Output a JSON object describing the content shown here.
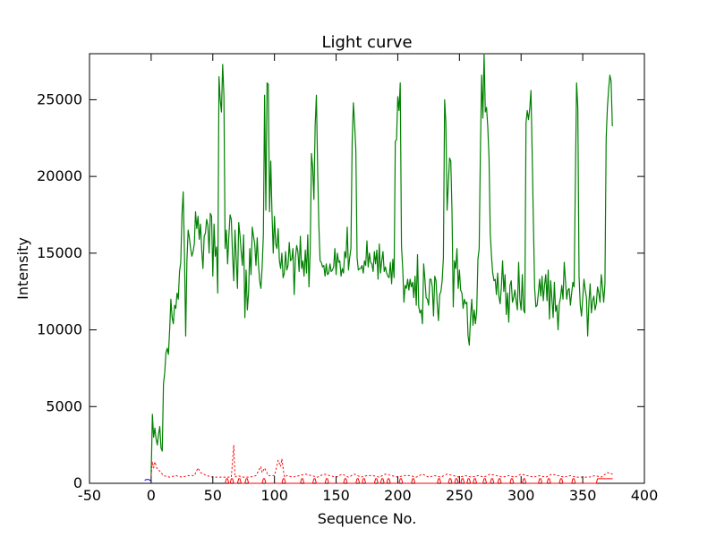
{
  "chart_data": {
    "type": "line",
    "title": "Light curve",
    "xlabel": "Sequence No.",
    "ylabel": "Intensity",
    "xlim": [
      -50,
      400
    ],
    "ylim": [
      0,
      28000
    ],
    "xticks": [
      -50,
      0,
      50,
      100,
      150,
      200,
      250,
      300,
      350,
      400
    ],
    "yticks": [
      0,
      5000,
      10000,
      15000,
      20000,
      25000
    ],
    "grid": false,
    "colors": {
      "main": "#008000",
      "error": "#ff0000",
      "start": "#0000ff"
    },
    "series": [
      {
        "style": "solid",
        "x": [
          0,
          1,
          2,
          3,
          4,
          5,
          6,
          7,
          8,
          9,
          10,
          11,
          12,
          13,
          14,
          15,
          16,
          17,
          18,
          19,
          20,
          21,
          22,
          23,
          24,
          25,
          26,
          27,
          28,
          29,
          30,
          31,
          32,
          33,
          34,
          35,
          36,
          37,
          38,
          39,
          40,
          41,
          42,
          43,
          44,
          45,
          46,
          47,
          48,
          49,
          50,
          51,
          52,
          53,
          54,
          55,
          56,
          57,
          58,
          59,
          60,
          61,
          62,
          63,
          64,
          65,
          66,
          67,
          68,
          69,
          70,
          71,
          72,
          73,
          74,
          75,
          76,
          77,
          78,
          79,
          80,
          81,
          82,
          83,
          84,
          85,
          86,
          87,
          88,
          89,
          90,
          91,
          92,
          93,
          94,
          95,
          96,
          97,
          98,
          99,
          100,
          101,
          102,
          103,
          104,
          105,
          106,
          107,
          108,
          109,
          110,
          111,
          112,
          113,
          114,
          115,
          116,
          117,
          118,
          119,
          120,
          121,
          122,
          123,
          124,
          125,
          126,
          127,
          128,
          129,
          130,
          131,
          132,
          133,
          134,
          135,
          136,
          137,
          138,
          139,
          140,
          141,
          142,
          143,
          144,
          145,
          146,
          147,
          148,
          149,
          150,
          151,
          152,
          153,
          154,
          155,
          156,
          157,
          158,
          159,
          160,
          161,
          162,
          163,
          164,
          165,
          166,
          167,
          168,
          169,
          170,
          171,
          172,
          173,
          174,
          175,
          176,
          177,
          178,
          179,
          180,
          181,
          182,
          183,
          184,
          185,
          186,
          187,
          188,
          189,
          190,
          191,
          192,
          193,
          194,
          195,
          196,
          197,
          198,
          199,
          200,
          201,
          202,
          203,
          204,
          205,
          206,
          207,
          208,
          209,
          210,
          211,
          212,
          213,
          214,
          215,
          216,
          217,
          218,
          219,
          220,
          221,
          222,
          223,
          224,
          225,
          226,
          227,
          228,
          229,
          230,
          231,
          232,
          233,
          234,
          235,
          236,
          237,
          238,
          239,
          240,
          241,
          242,
          243,
          244,
          245,
          246,
          247,
          248,
          249,
          250,
          251,
          252,
          253,
          254,
          255,
          256,
          257,
          258,
          259,
          260,
          261,
          262,
          263,
          264,
          265,
          266,
          267,
          268,
          269,
          270,
          271,
          272,
          273,
          274,
          275,
          276,
          277,
          278,
          279,
          280,
          281,
          282,
          283,
          284,
          285,
          286,
          287,
          288,
          289,
          290,
          291,
          292,
          293,
          294,
          295,
          296,
          297,
          298,
          299,
          300,
          301,
          302,
          303,
          304,
          305,
          306,
          307,
          308,
          309,
          310,
          311,
          312,
          313,
          314,
          315,
          316,
          317,
          318,
          319,
          320,
          321,
          322,
          323,
          324,
          325,
          326,
          327,
          328,
          329,
          330,
          331,
          332,
          333,
          334,
          335,
          336,
          337,
          338,
          339,
          340,
          341,
          342,
          343,
          344,
          345,
          346,
          347,
          348,
          349,
          350,
          351,
          352,
          353,
          354,
          355,
          356,
          357,
          358,
          359,
          360,
          361,
          362,
          363,
          364,
          365,
          366,
          367,
          368,
          369,
          370,
          371,
          372,
          373,
          374
        ],
        "y": [
          500,
          4500,
          3000,
          3600,
          2900,
          2500,
          3200,
          3700,
          2300,
          2100,
          6500,
          7200,
          8500,
          8800,
          8400,
          10000,
          12000,
          10800,
          10400,
          11600,
          11400,
          12400,
          12000,
          13800,
          14400,
          17500,
          19000,
          15000,
          9600,
          14500,
          16500,
          16000,
          15300,
          14800,
          15100,
          15600,
          17700,
          16600,
          17400,
          15900,
          16900,
          15200,
          14000,
          16100,
          16300,
          17200,
          16800,
          15000,
          17600,
          17400,
          13500,
          16900,
          14800,
          15400,
          12400,
          26500,
          25000,
          24200,
          27300,
          25300,
          15300,
          16500,
          14300,
          16100,
          17500,
          17200,
          14900,
          13200,
          16500,
          14600,
          12700,
          17000,
          16200,
          15100,
          14200,
          16200,
          10800,
          13900,
          11300,
          12400,
          15300,
          13600,
          16700,
          16100,
          15600,
          14200,
          16000,
          14300,
          13200,
          12700,
          14100,
          16200,
          25300,
          17800,
          26100,
          26000,
          17700,
          21000,
          17600,
          15000,
          17400,
          15600,
          15300,
          16600,
          14500,
          14000,
          15000,
          13400,
          13700,
          15100,
          13900,
          14200,
          15700,
          14500,
          14600,
          15300,
          12300,
          14700,
          15500,
          15100,
          13800,
          16100,
          14000,
          14500,
          13500,
          15200,
          13700,
          16200,
          12800,
          15200,
          21500,
          20600,
          18500,
          23300,
          25300,
          20500,
          16800,
          14500,
          14400,
          14100,
          14200,
          13500,
          14300,
          13600,
          13700,
          14300,
          13800,
          13900,
          14100,
          15300,
          13600,
          15000,
          14400,
          14500,
          13500,
          14000,
          13700,
          15100,
          14700,
          16700,
          13900,
          14700,
          15300,
          22200,
          24800,
          23400,
          21700,
          14700,
          13900,
          14000,
          14000,
          14200,
          13700,
          14500,
          14200,
          15800,
          14100,
          15000,
          14400,
          14300,
          13800,
          15100,
          14300,
          15200,
          13300,
          15600,
          13700,
          14500,
          15100,
          13800,
          14100,
          13700,
          13500,
          13400,
          14400,
          13000,
          14600,
          13400,
          22300,
          22400,
          25200,
          24300,
          26100,
          15500,
          14000,
          11800,
          12900,
          12700,
          13300,
          12600,
          13300,
          12800,
          13100,
          12100,
          13500,
          11600,
          14900,
          11500,
          11100,
          11300,
          10400,
          14300,
          13300,
          12100,
          12000,
          11600,
          13300,
          13300,
          12800,
          10900,
          13500,
          13200,
          11700,
          10600,
          12300,
          12500,
          13200,
          14700,
          25000,
          23500,
          17800,
          19500,
          21200,
          21000,
          17600,
          11500,
          14500,
          14000,
          15300,
          12700,
          13900,
          12600,
          12400,
          11400,
          12000,
          11700,
          11800,
          9600,
          9000,
          10800,
          12000,
          10300,
          11300,
          10400,
          11200,
          14600,
          15300,
          21600,
          26600,
          23800,
          28000,
          24200,
          24500,
          23200,
          21200,
          16300,
          14800,
          13700,
          13200,
          13300,
          12300,
          13700,
          12200,
          11700,
          12800,
          14500,
          12500,
          13600,
          11000,
          12400,
          10500,
          12900,
          13200,
          11800,
          12100,
          12600,
          11900,
          11300,
          14400,
          12000,
          11300,
          13600,
          11300,
          11100,
          23500,
          24300,
          23700,
          24400,
          25600,
          21500,
          16900,
          12700,
          11500,
          11600,
          12400,
          13300,
          12200,
          13500,
          11900,
          12900,
          13600,
          11900,
          13900,
          10700,
          13200,
          12000,
          10800,
          13100,
          11200,
          11600,
          10000,
          11700,
          12100,
          12900,
          12000,
          14400,
          13200,
          12000,
          12600,
          12700,
          11600,
          12400,
          13100,
          12800,
          19500,
          26100,
          24500,
          13500,
          11600,
          10900,
          12100,
          13300,
          12600,
          12100,
          9600,
          11800,
          13000,
          11100,
          11900,
          12200,
          11300,
          11700,
          12800,
          12400,
          11800,
          13600,
          12800,
          11800,
          13000,
          22500,
          24500,
          25700,
          26600,
          26200,
          23300
        ]
      },
      {
        "style": "dotted",
        "x": [
          0,
          1,
          2,
          3,
          5,
          7,
          10,
          15,
          20,
          25,
          30,
          35,
          38,
          40,
          45,
          50,
          55,
          60,
          65,
          67,
          68,
          70,
          75,
          80,
          85,
          89,
          90,
          92,
          95,
          100,
          103,
          105,
          106,
          107,
          108,
          110,
          115,
          120,
          125,
          130,
          135,
          140,
          145,
          150,
          155,
          160,
          165,
          170,
          175,
          180,
          185,
          190,
          195,
          200,
          205,
          210,
          215,
          220,
          225,
          230,
          235,
          240,
          245,
          250,
          255,
          260,
          265,
          270,
          275,
          280,
          285,
          290,
          295,
          300,
          305,
          310,
          315,
          320,
          325,
          330,
          335,
          340,
          345,
          350,
          355,
          360,
          365,
          370,
          374
        ],
        "y": [
          500,
          1400,
          1000,
          1400,
          900,
          800,
          500,
          400,
          500,
          400,
          500,
          500,
          1000,
          700,
          500,
          400,
          400,
          400,
          400,
          2500,
          400,
          500,
          400,
          400,
          500,
          1100,
          700,
          1000,
          500,
          500,
          1500,
          1100,
          1600,
          1000,
          400,
          500,
          400,
          500,
          600,
          500,
          400,
          600,
          500,
          400,
          600,
          400,
          600,
          400,
          500,
          500,
          400,
          600,
          500,
          400,
          500,
          500,
          400,
          600,
          400,
          500,
          400,
          600,
          500,
          400,
          500,
          400,
          500,
          400,
          600,
          500,
          400,
          500,
          400,
          600,
          500,
          400,
          500,
          400,
          600,
          500,
          400,
          500,
          400,
          400,
          400,
          500,
          400,
          700,
          600
        ]
      },
      {
        "style": "solid",
        "x": [
          60,
          61,
          62,
          63,
          64,
          65,
          66,
          67,
          70,
          71,
          72,
          73,
          76,
          77,
          78,
          79,
          90,
          91,
          92,
          93,
          106,
          107,
          108,
          109,
          121,
          122,
          123,
          124,
          131,
          132,
          133,
          134,
          141,
          142,
          143,
          144,
          156,
          157,
          158,
          159,
          166,
          167,
          168,
          169,
          171,
          172,
          173,
          174,
          181,
          182,
          183,
          184,
          186,
          187,
          188,
          189,
          191,
          192,
          193,
          194,
          201,
          202,
          203,
          204,
          211,
          212,
          213,
          214,
          232,
          233,
          234,
          235,
          241,
          242,
          243,
          244,
          246,
          247,
          248,
          249,
          251,
          252,
          253,
          254,
          256,
          257,
          258,
          259,
          261,
          262,
          263,
          264,
          269,
          270,
          271,
          272,
          275,
          276,
          277,
          278,
          281,
          282,
          283,
          284,
          291,
          292,
          293,
          294,
          301,
          302,
          303,
          304,
          314,
          315,
          316,
          317,
          321,
          322,
          323,
          324,
          331,
          332,
          333,
          334,
          341,
          342,
          343,
          344,
          361,
          362,
          363,
          364,
          365,
          366,
          367,
          368,
          369,
          370,
          371,
          372,
          373,
          374
        ],
        "y": [
          0,
          300,
          300,
          0,
          0,
          300,
          300,
          0,
          0,
          300,
          300,
          0,
          0,
          300,
          300,
          0,
          0,
          300,
          300,
          0,
          0,
          300,
          300,
          0,
          0,
          300,
          300,
          0,
          0,
          300,
          300,
          0,
          0,
          300,
          300,
          0,
          0,
          300,
          300,
          0,
          0,
          300,
          300,
          0,
          0,
          300,
          300,
          0,
          0,
          300,
          300,
          0,
          0,
          300,
          300,
          0,
          0,
          300,
          300,
          0,
          0,
          300,
          300,
          0,
          0,
          300,
          300,
          0,
          0,
          300,
          300,
          0,
          0,
          300,
          300,
          0,
          0,
          300,
          300,
          0,
          0,
          300,
          300,
          0,
          0,
          300,
          300,
          0,
          0,
          300,
          300,
          0,
          0,
          300,
          300,
          0,
          0,
          300,
          300,
          0,
          0,
          300,
          300,
          0,
          0,
          300,
          300,
          0,
          0,
          300,
          300,
          0,
          0,
          300,
          300,
          0,
          0,
          300,
          300,
          0,
          0,
          300,
          300,
          0,
          0,
          300,
          300,
          0,
          0,
          300,
          300,
          300,
          300,
          300,
          300,
          300,
          300,
          300,
          300,
          300,
          300,
          300
        ]
      },
      {
        "style": "solid",
        "x": [
          -5,
          -4,
          -3,
          -2,
          -1,
          0
        ],
        "y": [
          200,
          250,
          250,
          250,
          200,
          150
        ]
      }
    ]
  }
}
